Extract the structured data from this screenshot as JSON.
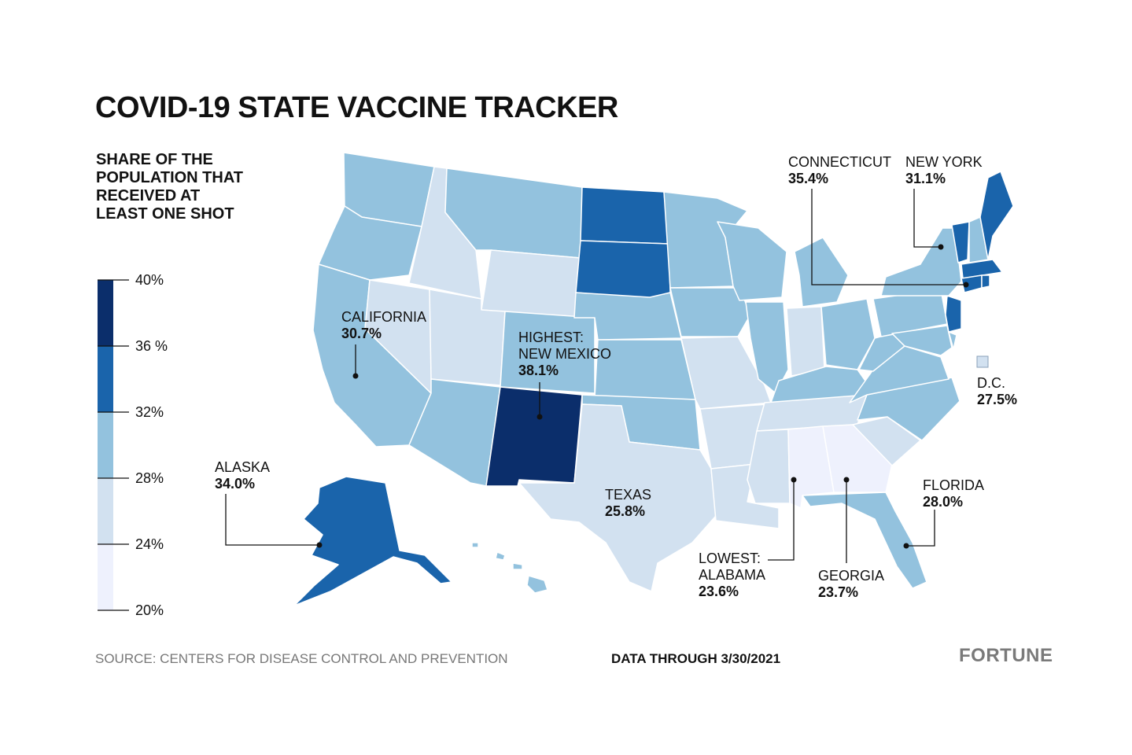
{
  "title": "COVID-19 STATE VACCINE TRACKER",
  "legend": {
    "title": "SHARE OF THE POPULATION THAT RECEIVED AT LEAST ONE SHOT",
    "bins": [
      {
        "from": 36,
        "to": 40,
        "color": "#0b2e6b"
      },
      {
        "from": 32,
        "to": 36,
        "color": "#1a64ab"
      },
      {
        "from": 28,
        "to": 32,
        "color": "#93c2de"
      },
      {
        "from": 24,
        "to": 28,
        "color": "#d2e1f0"
      },
      {
        "from": 20,
        "to": 24,
        "color": "#eef1fd"
      }
    ],
    "ticks": [
      "40%",
      "36 %",
      "32%",
      "28%",
      "24%",
      "20%"
    ]
  },
  "callouts": {
    "connecticut": {
      "name": "CONNECTICUT",
      "value": "35.4%"
    },
    "new_york": {
      "name": "NEW YORK",
      "value": "31.1%"
    },
    "california": {
      "name": "CALIFORNIA",
      "value": "30.7%"
    },
    "new_mexico": {
      "line1": "HIGHEST:",
      "name": "NEW MEXICO",
      "value": "38.1%"
    },
    "dc": {
      "name": "D.C.",
      "value": "27.5%"
    },
    "alaska": {
      "name": "ALASKA",
      "value": "34.0%"
    },
    "texas": {
      "name": "TEXAS",
      "value": "25.8%"
    },
    "florida": {
      "name": "FLORIDA",
      "value": "28.0%"
    },
    "alabama": {
      "line1": "LOWEST:",
      "name": "ALABAMA",
      "value": "23.6%"
    },
    "georgia": {
      "name": "GEORGIA",
      "value": "23.7%"
    }
  },
  "footer": {
    "source": "SOURCE: CENTERS FOR DISEASE CONTROL AND PREVENTION",
    "data_through": "DATA THROUGH 3/30/2021",
    "brand": "FORTUNE"
  }
}
